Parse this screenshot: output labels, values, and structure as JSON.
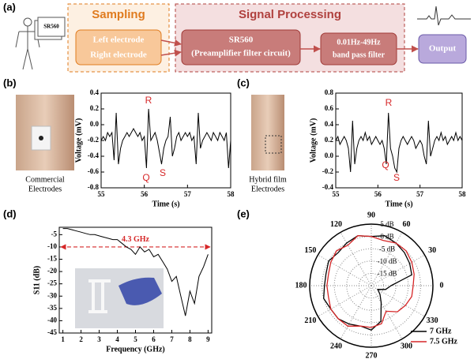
{
  "diagram": {
    "panel_label": "(a)",
    "device": "SR560",
    "sampling": {
      "title": "Sampling",
      "inputs": [
        "Left electrode",
        "Right electrode"
      ]
    },
    "processing": {
      "title": "Signal Processing",
      "amplifier": [
        "SR560",
        "(Preamplifier filter circuit)"
      ],
      "filter": [
        "0.01Hz-49Hz",
        "band pass filter"
      ]
    },
    "output": "Output"
  },
  "chart_data": [
    {
      "type": "line",
      "panel_label": "(b)",
      "caption": [
        "Commercial",
        "Electrodes"
      ],
      "xlabel": "Time (s)",
      "ylabel": "Voltage (mV)",
      "xlim": [
        55,
        58
      ],
      "xticks": [
        55,
        56,
        57,
        58
      ],
      "ylim": [
        -0.8,
        0.4
      ],
      "yticks": [
        -0.8,
        -0.6,
        -0.4,
        -0.2,
        {
          "value": 0,
          "label": "0.0"
        },
        0.2,
        0.4
      ],
      "color": "#000000",
      "annotations": [
        "R",
        "Q",
        "S"
      ],
      "annotation_color": "#d62728",
      "x": [
        55,
        55.05,
        55.1,
        55.15,
        55.2,
        55.25,
        55.3,
        55.35,
        55.4,
        55.45,
        55.5,
        55.55,
        55.6,
        55.65,
        55.7,
        55.75,
        55.8,
        55.85,
        55.9,
        55.95,
        56,
        56.05,
        56.1,
        56.15,
        56.2,
        56.25,
        56.3,
        56.35,
        56.4,
        56.45,
        56.5,
        56.55,
        56.6,
        56.65,
        56.7,
        56.75,
        56.8,
        56.85,
        56.9,
        56.95,
        57,
        57.05,
        57.1,
        57.15,
        57.2,
        57.25,
        57.3,
        57.35,
        57.4,
        57.45,
        57.5,
        57.55,
        57.6,
        57.65,
        57.7,
        57.75,
        57.8,
        57.85,
        57.9,
        57.95,
        58
      ],
      "values": [
        -0.2,
        -0.15,
        -0.2,
        -0.1,
        -0.15,
        -0.1,
        -0.45,
        0.15,
        -0.5,
        -0.3,
        -0.2,
        -0.15,
        -0.1,
        -0.15,
        -0.1,
        -0.05,
        -0.1,
        -0.15,
        -0.1,
        -0.2,
        -0.15,
        -0.55,
        0.2,
        -0.2,
        -0.15,
        -0.1,
        -0.2,
        -0.35,
        -0.5,
        -0.3,
        -0.2,
        -0.15,
        0.1,
        -0.4,
        -0.3,
        -0.15,
        -0.1,
        -0.2,
        -0.15,
        -0.1,
        -0.15,
        -0.1,
        -0.2,
        -0.15,
        -0.5,
        0.15,
        -0.3,
        -0.2,
        -0.15,
        -0.1,
        -0.15,
        -0.2,
        -0.1,
        -0.15,
        -0.2,
        -0.1,
        -0.15,
        -0.2,
        -0.1,
        -0.55,
        -0.2
      ]
    },
    {
      "type": "line",
      "panel_label": "(c)",
      "caption": [
        "Hybrid film",
        "Electrodes"
      ],
      "xlabel": "Time (s)",
      "ylabel": "Voltage (mV)",
      "xlim": [
        55,
        58
      ],
      "xticks": [
        55,
        56,
        57,
        58
      ],
      "ylim": [
        -0.4,
        0.8
      ],
      "yticks": [
        -0.4,
        -0.2,
        {
          "value": 0,
          "label": "0.0"
        },
        0.2,
        0.4,
        0.6,
        0.8
      ],
      "color": "#000000",
      "annotations": [
        "R",
        "Q",
        "S"
      ],
      "annotation_color": "#d62728",
      "x": [
        55,
        55.05,
        55.1,
        55.15,
        55.2,
        55.25,
        55.3,
        55.35,
        55.4,
        55.45,
        55.5,
        55.55,
        55.6,
        55.65,
        55.7,
        55.75,
        55.8,
        55.85,
        55.9,
        55.95,
        56,
        56.05,
        56.1,
        56.15,
        56.2,
        56.25,
        56.3,
        56.35,
        56.4,
        56.45,
        56.5,
        56.55,
        56.6,
        56.65,
        56.7,
        56.75,
        56.8,
        56.85,
        56.9,
        56.95,
        57,
        57.05,
        57.1,
        57.15,
        57.2,
        57.25,
        57.3,
        57.35,
        57.4,
        57.45,
        57.5,
        57.55,
        57.6,
        57.65,
        57.7,
        57.75,
        57.8,
        57.85,
        57.9,
        57.95,
        58
      ],
      "values": [
        0.2,
        0.25,
        0.15,
        0.2,
        0.25,
        0.2,
        0.1,
        -0.2,
        0.45,
        -0.1,
        0.1,
        0.2,
        0.25,
        0.2,
        0.3,
        0.2,
        0.25,
        0.15,
        0.2,
        0.25,
        0.2,
        0.15,
        0.2,
        0.1,
        -0.1,
        0.55,
        0.1,
        0,
        -0.15,
        -0.2,
        0.1,
        0.2,
        0.25,
        0.2,
        0.15,
        0.2,
        0.25,
        0.2,
        0.1,
        0.15,
        0.2,
        0.15,
        0,
        -0.1,
        0.45,
        0,
        0.1,
        0.2,
        0.25,
        0.2,
        0.3,
        0.2,
        0.25,
        0.15,
        0.2,
        0.25,
        0.2,
        0.3,
        0.2,
        0.25,
        0.2
      ]
    },
    {
      "type": "line",
      "panel_label": "(d)",
      "xlabel": "Frequency (GHz)",
      "ylabel": "S11 (dB)",
      "xlim": [
        0.8,
        9.2
      ],
      "xticks": [
        1,
        2,
        3,
        4,
        5,
        6,
        7,
        8,
        9
      ],
      "ylim": [
        -45,
        -2
      ],
      "yticks": [
        -45,
        -40,
        -35,
        -30,
        -25,
        -20,
        -15,
        -10,
        -5
      ],
      "color": "#000000",
      "hline": -10,
      "hline_label": "4.3 GHz",
      "hline_color": "#d62728",
      "x": [
        1,
        1.25,
        1.5,
        1.75,
        2,
        2.25,
        2.5,
        2.75,
        3,
        3.25,
        3.5,
        3.75,
        4,
        4.25,
        4.5,
        4.75,
        5,
        5.25,
        5.5,
        5.75,
        6,
        6.25,
        6.5,
        6.75,
        7,
        7.25,
        7.5,
        7.75,
        8,
        8.25,
        8.5,
        8.75,
        9
      ],
      "values": [
        -2.5,
        -2.5,
        -3,
        -3.5,
        -4,
        -4.5,
        -5,
        -5,
        -5.5,
        -6,
        -6.5,
        -7,
        -7,
        -8.5,
        -10,
        -11,
        -13,
        -10,
        -12,
        -11,
        -14,
        -13,
        -16,
        -19,
        -24,
        -22,
        -30,
        -38,
        -28,
        -33,
        -22,
        -18,
        -13
      ]
    },
    {
      "type": "polar",
      "panel_label": "(e)",
      "rlim": [
        -20,
        5
      ],
      "rticks": [
        {
          "value": 5,
          "label": "5 dB"
        },
        {
          "value": 0,
          "label": "0 dB"
        },
        {
          "value": -5,
          "label": "-5 dB"
        },
        {
          "value": -10,
          "label": "-10 dB"
        },
        {
          "value": -15,
          "label": "-15 dB"
        }
      ],
      "thetaticks": [
        0,
        30,
        60,
        90,
        120,
        150,
        180,
        210,
        240,
        270,
        300,
        330
      ],
      "theta": [
        0,
        15,
        30,
        45,
        60,
        75,
        90,
        105,
        120,
        135,
        150,
        165,
        180,
        195,
        210,
        225,
        240,
        255,
        270,
        285,
        300,
        315,
        330,
        345
      ],
      "series": [
        {
          "name": "7 GHz",
          "color": "#000000",
          "values": [
            -12,
            -3,
            -2,
            -1,
            0,
            1,
            0,
            1,
            0,
            -1,
            0,
            -1,
            -1,
            0,
            -1,
            -1,
            -2,
            -3,
            -2,
            -5,
            -12,
            -15,
            -17,
            -14
          ]
        },
        {
          "name": "7.5 GHz",
          "color": "#d62728",
          "values": [
            -3,
            -2,
            -1,
            0,
            0,
            -1,
            0,
            1,
            -1,
            0,
            -1,
            -2,
            -2,
            -2,
            -1,
            -1,
            -1,
            -3,
            -3,
            -4,
            -8,
            -5,
            -4,
            -3
          ]
        }
      ]
    }
  ]
}
